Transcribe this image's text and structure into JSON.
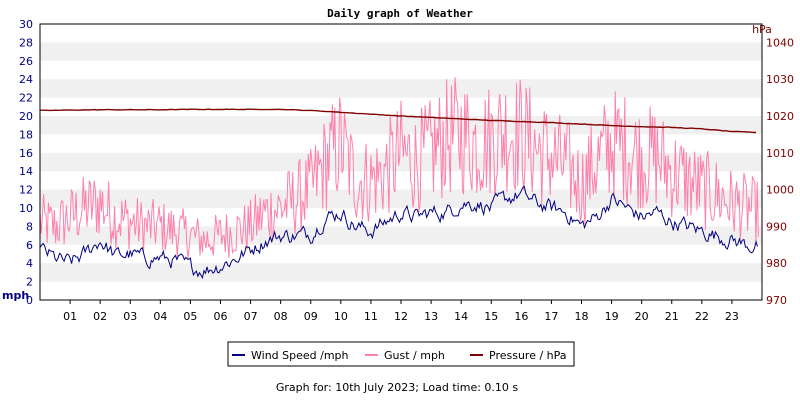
{
  "chart_data": {
    "type": "line",
    "title": "Daily graph of Weather",
    "y_left": {
      "unit": "mph",
      "range": [
        0,
        30
      ],
      "ticks": [
        "0",
        "2",
        "4",
        "6",
        "8",
        "10",
        "12",
        "14",
        "16",
        "18",
        "20",
        "22",
        "24",
        "26",
        "28",
        "30"
      ]
    },
    "y_right": {
      "unit": "hPa",
      "range": [
        970,
        1045
      ],
      "ticks": [
        "970",
        "980",
        "990",
        "1000",
        "1010",
        "1020",
        "1030",
        "1040"
      ]
    },
    "x": {
      "range": [
        0,
        24
      ],
      "ticks": [
        "01",
        "02",
        "03",
        "04",
        "05",
        "06",
        "07",
        "08",
        "09",
        "10",
        "11",
        "12",
        "13",
        "14",
        "15",
        "16",
        "17",
        "18",
        "19",
        "20",
        "21",
        "22",
        "23"
      ]
    },
    "grid": "horizontal bands",
    "legend_position": "bottom",
    "series": [
      {
        "name": "Wind Speed /mph",
        "color": "#000080",
        "axis": "left",
        "hours": [
          0,
          0.5,
          1,
          1.5,
          2,
          2.5,
          3,
          3.5,
          4,
          4.5,
          5,
          5.5,
          6,
          6.5,
          7,
          7.5,
          8,
          8.5,
          9,
          9.5,
          10,
          10.5,
          11,
          11.5,
          12,
          12.5,
          13,
          13.5,
          14,
          14.5,
          15,
          15.5,
          16,
          16.5,
          17,
          17.5,
          18,
          18.5,
          19,
          19.5,
          20,
          20.5,
          21,
          21.5,
          22,
          22.5,
          23,
          23.5,
          23.9
        ],
        "values": [
          5.5,
          4.5,
          4.0,
          5.0,
          6.5,
          4.8,
          5.0,
          4.5,
          4.6,
          4.2,
          3.5,
          3.3,
          3.8,
          4.5,
          5.5,
          6.5,
          7.0,
          7.0,
          7.2,
          9.0,
          9.5,
          8.0,
          7.5,
          8.5,
          9.5,
          9.0,
          9.5,
          9.5,
          10.5,
          10.5,
          10.0,
          11.0,
          11.5,
          10.5,
          10.0,
          9.5,
          8.0,
          9.0,
          11.0,
          10.0,
          9.0,
          9.5,
          8.5,
          8.0,
          7.5,
          7.0,
          6.5,
          6.0,
          5.8
        ]
      },
      {
        "name": "Gust / mph",
        "color": "#ff80aa",
        "axis": "left",
        "hours": [
          0,
          0.5,
          1,
          1.5,
          2,
          2.5,
          3,
          3.5,
          4,
          4.5,
          5,
          5.5,
          6,
          6.5,
          7,
          7.5,
          8,
          8.5,
          9,
          9.5,
          10,
          10.5,
          11,
          11.5,
          12,
          12.5,
          13,
          13.5,
          14,
          14.5,
          15,
          15.5,
          16,
          16.5,
          17,
          17.5,
          18,
          18.5,
          19,
          19.5,
          20,
          20.5,
          21,
          21.5,
          22,
          22.5,
          23,
          23.5,
          23.9
        ],
        "values": [
          8.5,
          8.0,
          9.0,
          10.0,
          10.5,
          9.0,
          8.5,
          8.0,
          8.0,
          7.5,
          7.0,
          6.5,
          7.0,
          7.5,
          8.0,
          9.5,
          10.0,
          11.0,
          12.0,
          15.0,
          17.0,
          13.0,
          13.0,
          14.0,
          16.0,
          15.0,
          16.0,
          17.5,
          18.0,
          17.0,
          17.5,
          18.5,
          18.0,
          16.5,
          15.5,
          14.5,
          12.5,
          15.0,
          17.0,
          16.5,
          15.5,
          15.5,
          14.0,
          13.0,
          12.0,
          11.5,
          10.5,
          10.0,
          9.5
        ]
      },
      {
        "name": "Pressure / hPa",
        "color": "#800000",
        "axis": "right",
        "hours": [
          0,
          1,
          2,
          3,
          4,
          5,
          6,
          7,
          8,
          9,
          10,
          11,
          12,
          13,
          14,
          15,
          16,
          17,
          18,
          19,
          20,
          21,
          22,
          23,
          23.9
        ],
        "values": [
          1021.5,
          1021.6,
          1021.7,
          1021.7,
          1021.7,
          1021.8,
          1021.8,
          1021.8,
          1021.8,
          1021.5,
          1021.0,
          1020.5,
          1020.0,
          1019.6,
          1019.2,
          1018.8,
          1018.5,
          1018.2,
          1017.8,
          1017.4,
          1017.1,
          1016.9,
          1016.5,
          1015.8,
          1015.5
        ]
      }
    ]
  },
  "footer": "Graph for: 10th July 2023; Load time: 0.10 s"
}
